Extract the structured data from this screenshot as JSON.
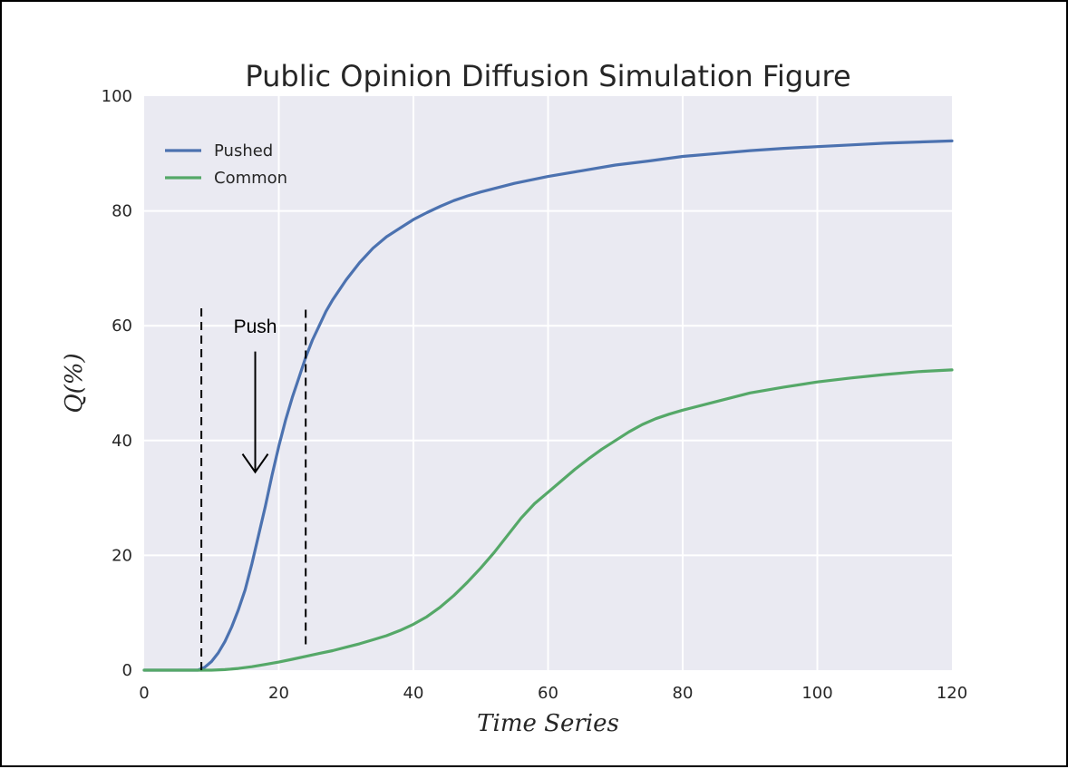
{
  "chart_data": {
    "type": "line",
    "title": "Public Opinion Diffusion Simulation Figure",
    "xlabel": "Time Series",
    "ylabel": "Q(%)",
    "xlim": [
      0,
      120
    ],
    "ylim": [
      0,
      100
    ],
    "xticks": [
      0,
      20,
      40,
      60,
      80,
      100,
      120
    ],
    "yticks": [
      0,
      20,
      40,
      60,
      80,
      100
    ],
    "grid": true,
    "legend_position": "upper-left",
    "background": "#EAEAF2",
    "series": [
      {
        "name": "Pushed",
        "color": "#4C72B0",
        "points": [
          [
            0,
            0
          ],
          [
            5,
            0
          ],
          [
            8,
            0
          ],
          [
            9,
            0.5
          ],
          [
            10,
            1.5
          ],
          [
            11,
            3
          ],
          [
            12,
            5
          ],
          [
            13,
            7.5
          ],
          [
            14,
            10.5
          ],
          [
            15,
            14
          ],
          [
            16,
            18.5
          ],
          [
            17,
            23.5
          ],
          [
            18,
            28.5
          ],
          [
            19,
            34
          ],
          [
            20,
            39
          ],
          [
            21,
            43.5
          ],
          [
            22,
            47.5
          ],
          [
            23,
            51
          ],
          [
            24,
            54.5
          ],
          [
            25,
            57.5
          ],
          [
            26,
            60
          ],
          [
            27,
            62.5
          ],
          [
            28,
            64.5
          ],
          [
            30,
            68
          ],
          [
            32,
            71
          ],
          [
            34,
            73.5
          ],
          [
            36,
            75.5
          ],
          [
            38,
            77
          ],
          [
            40,
            78.5
          ],
          [
            42,
            79.7
          ],
          [
            44,
            80.8
          ],
          [
            46,
            81.8
          ],
          [
            48,
            82.6
          ],
          [
            50,
            83.3
          ],
          [
            55,
            84.8
          ],
          [
            60,
            86
          ],
          [
            65,
            87
          ],
          [
            70,
            88
          ],
          [
            75,
            88.7
          ],
          [
            80,
            89.5
          ],
          [
            85,
            90
          ],
          [
            90,
            90.5
          ],
          [
            95,
            90.9
          ],
          [
            100,
            91.2
          ],
          [
            105,
            91.5
          ],
          [
            110,
            91.8
          ],
          [
            115,
            92
          ],
          [
            120,
            92.2
          ]
        ]
      },
      {
        "name": "Common",
        "color": "#55A868",
        "points": [
          [
            0,
            0
          ],
          [
            10,
            0
          ],
          [
            12,
            0.1
          ],
          [
            14,
            0.3
          ],
          [
            16,
            0.6
          ],
          [
            18,
            1
          ],
          [
            20,
            1.4
          ],
          [
            22,
            1.9
          ],
          [
            24,
            2.4
          ],
          [
            26,
            2.9
          ],
          [
            28,
            3.4
          ],
          [
            30,
            4
          ],
          [
            32,
            4.6
          ],
          [
            34,
            5.3
          ],
          [
            36,
            6
          ],
          [
            38,
            6.9
          ],
          [
            40,
            8
          ],
          [
            42,
            9.3
          ],
          [
            44,
            11
          ],
          [
            46,
            13
          ],
          [
            48,
            15.3
          ],
          [
            50,
            17.8
          ],
          [
            52,
            20.5
          ],
          [
            54,
            23.5
          ],
          [
            56,
            26.5
          ],
          [
            58,
            29
          ],
          [
            60,
            31
          ],
          [
            62,
            33
          ],
          [
            64,
            35
          ],
          [
            66,
            36.8
          ],
          [
            68,
            38.5
          ],
          [
            70,
            40
          ],
          [
            72,
            41.5
          ],
          [
            74,
            42.8
          ],
          [
            76,
            43.8
          ],
          [
            78,
            44.6
          ],
          [
            80,
            45.3
          ],
          [
            85,
            46.8
          ],
          [
            90,
            48.3
          ],
          [
            95,
            49.3
          ],
          [
            100,
            50.2
          ],
          [
            105,
            50.9
          ],
          [
            110,
            51.5
          ],
          [
            115,
            52
          ],
          [
            120,
            52.3
          ]
        ]
      }
    ],
    "annotations": [
      {
        "type": "vline",
        "x": 8.5,
        "y_range": [
          0,
          63.5
        ],
        "style": "dashed"
      },
      {
        "type": "vline",
        "x": 24,
        "y_range": [
          4.5,
          63.5
        ],
        "style": "dashed"
      },
      {
        "type": "arrow",
        "x": 16.5,
        "y_from": 55.5,
        "y_to": 34.5
      },
      {
        "type": "text",
        "text": "Push",
        "x": 16.5,
        "y": 60
      }
    ]
  }
}
